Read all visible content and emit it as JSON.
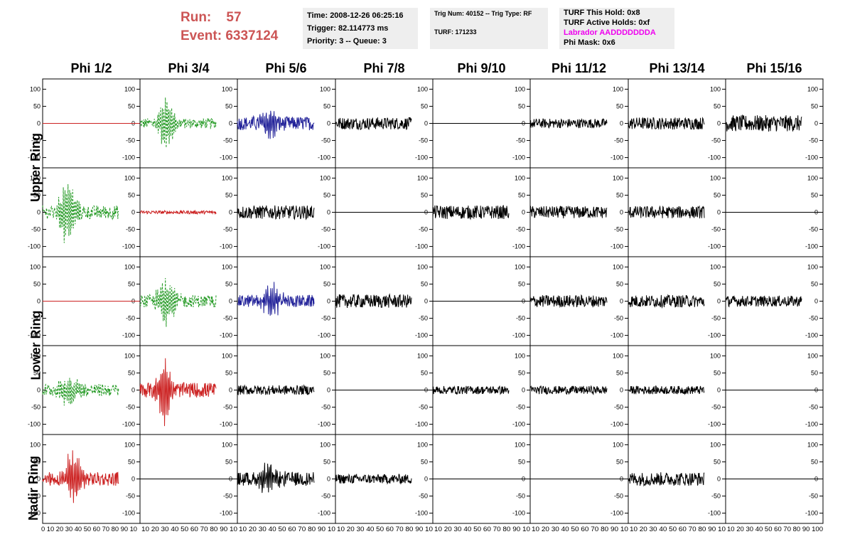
{
  "header": {
    "run_label": "Run:",
    "run_value": "57",
    "event_label": "Event:",
    "event_value": "6337124",
    "time": "Time: 2008-12-26 06:25:16",
    "trigger": "Trigger: 82.114773 ms",
    "priority": "Priority: 3 -- Queue: 3",
    "trig_num": "Trig Num: 40152 -- Trig Type: RF",
    "turf": "TURF: 171233",
    "turf_hold": "TURF This Hold: 0x8",
    "turf_active": "TURF Active Holds: 0xf",
    "labrador": "Labrador AADDDDDDDA",
    "phi_mask": "Phi Mask: 0x6",
    "colors": {
      "run": "#cc5555",
      "labrador": "#ee00ee"
    }
  },
  "columns": [
    "Phi 1/2",
    "Phi 3/4",
    "Phi 5/6",
    "Phi 7/8",
    "Phi 9/10",
    "Phi 11/12",
    "Phi 13/14",
    "Phi 15/16"
  ],
  "rows": [
    "Upper Ring",
    "Upper Ring",
    "Lower Ring",
    "Lower Ring",
    "Nadir Ring"
  ],
  "row_labels": [
    {
      "text": "Upper Ring"
    },
    {
      "text": "Lower Ring"
    },
    {
      "text": "Nadir Ring"
    }
  ],
  "chart_data": {
    "type": "line",
    "xlim": [
      0,
      100
    ],
    "ylim": [
      -130,
      130
    ],
    "y_ticks": [
      -100,
      -50,
      0,
      50,
      100
    ],
    "x_ticks": [
      0,
      10,
      20,
      30,
      40,
      50,
      60,
      70,
      80,
      90,
      100
    ],
    "x_tick_text_first": "0 10 20 30 40 50 60 70 80 90 10",
    "x_tick_text_mid": "10 20 30 40 50 60 70 80 90 10",
    "x_tick_text_last": "10 20 30 40 50 60 70 80 90 100",
    "colors": {
      "black": "#000000",
      "red": "#cc2222",
      "green": "#229922",
      "blue": "#222299"
    },
    "panels": [
      [
        {
          "color": "red",
          "dash": false,
          "amp": 0,
          "burst": null,
          "noise": 0,
          "flat": true
        },
        {
          "color": "green",
          "dash": true,
          "amp": 80,
          "burst": [
            35,
            10
          ],
          "noise": 15,
          "flat": false
        },
        {
          "color": "blue",
          "dash": false,
          "amp": 50,
          "burst": [
            40,
            12
          ],
          "noise": 20,
          "flat": false
        },
        {
          "color": "black",
          "dash": false,
          "amp": 0,
          "burst": null,
          "noise": 18,
          "flat": false
        },
        {
          "color": "black",
          "dash": false,
          "amp": 0,
          "burst": null,
          "noise": 0,
          "flat": true
        },
        {
          "color": "black",
          "dash": false,
          "amp": 0,
          "burst": null,
          "noise": 14,
          "flat": false
        },
        {
          "color": "black",
          "dash": false,
          "amp": 0,
          "burst": null,
          "noise": 18,
          "flat": false
        },
        {
          "color": "black",
          "dash": false,
          "amp": 0,
          "burst": null,
          "noise": 24,
          "flat": false
        }
      ],
      [
        {
          "color": "green",
          "dash": true,
          "amp": 90,
          "burst": [
            32,
            12
          ],
          "noise": 20,
          "flat": false
        },
        {
          "color": "red",
          "dash": false,
          "amp": 0,
          "burst": null,
          "noise": 5,
          "flat": false
        },
        {
          "color": "black",
          "dash": false,
          "amp": 0,
          "burst": null,
          "noise": 20,
          "flat": false
        },
        {
          "color": "black",
          "dash": false,
          "amp": 0,
          "burst": null,
          "noise": 0,
          "flat": true
        },
        {
          "color": "black",
          "dash": false,
          "amp": 0,
          "burst": null,
          "noise": 20,
          "flat": false
        },
        {
          "color": "black",
          "dash": false,
          "amp": 0,
          "burst": null,
          "noise": 18,
          "flat": false
        },
        {
          "color": "black",
          "dash": false,
          "amp": 0,
          "burst": null,
          "noise": 18,
          "flat": false
        },
        {
          "color": "black",
          "dash": false,
          "amp": 0,
          "burst": null,
          "noise": 0,
          "flat": true
        }
      ],
      [
        {
          "color": "red",
          "dash": false,
          "amp": 0,
          "burst": null,
          "noise": 0,
          "flat": true
        },
        {
          "color": "green",
          "dash": true,
          "amp": 75,
          "burst": [
            35,
            12
          ],
          "noise": 18,
          "flat": false
        },
        {
          "color": "blue",
          "dash": false,
          "amp": 45,
          "burst": [
            45,
            12
          ],
          "noise": 18,
          "flat": false
        },
        {
          "color": "black",
          "dash": false,
          "amp": 0,
          "burst": null,
          "noise": 20,
          "flat": false
        },
        {
          "color": "black",
          "dash": false,
          "amp": 0,
          "burst": null,
          "noise": 0,
          "flat": true
        },
        {
          "color": "black",
          "dash": false,
          "amp": 0,
          "burst": null,
          "noise": 18,
          "flat": false
        },
        {
          "color": "black",
          "dash": false,
          "amp": 0,
          "burst": null,
          "noise": 18,
          "flat": false
        },
        {
          "color": "black",
          "dash": false,
          "amp": 0,
          "burst": null,
          "noise": 16,
          "flat": false
        }
      ],
      [
        {
          "color": "green",
          "dash": true,
          "amp": 45,
          "burst": [
            35,
            12
          ],
          "noise": 18,
          "flat": false
        },
        {
          "color": "red",
          "dash": false,
          "amp": 95,
          "burst": [
            32,
            10
          ],
          "noise": 22,
          "flat": false
        },
        {
          "color": "black",
          "dash": false,
          "amp": 0,
          "burst": null,
          "noise": 14,
          "flat": false
        },
        {
          "color": "black",
          "dash": false,
          "amp": 0,
          "burst": null,
          "noise": 0,
          "flat": true
        },
        {
          "color": "black",
          "dash": false,
          "amp": 0,
          "burst": null,
          "noise": 12,
          "flat": false
        },
        {
          "color": "black",
          "dash": false,
          "amp": 0,
          "burst": null,
          "noise": 12,
          "flat": false
        },
        {
          "color": "black",
          "dash": false,
          "amp": 0,
          "burst": null,
          "noise": 12,
          "flat": false
        },
        {
          "color": "black",
          "dash": false,
          "amp": 0,
          "burst": null,
          "noise": 0,
          "flat": true
        }
      ],
      [
        {
          "color": "red",
          "dash": false,
          "amp": 80,
          "burst": [
            40,
            12
          ],
          "noise": 20,
          "flat": false
        },
        {
          "color": "black",
          "dash": false,
          "amp": 0,
          "burst": null,
          "noise": 0,
          "flat": true
        },
        {
          "color": "black",
          "dash": false,
          "amp": 40,
          "burst": [
            40,
            15
          ],
          "noise": 20,
          "flat": false
        },
        {
          "color": "black",
          "dash": false,
          "amp": 0,
          "burst": null,
          "noise": 14,
          "flat": false
        },
        {
          "color": "black",
          "dash": false,
          "amp": 0,
          "burst": null,
          "noise": 0,
          "flat": true
        },
        {
          "color": "black",
          "dash": false,
          "amp": 0,
          "burst": null,
          "noise": 0,
          "flat": true
        },
        {
          "color": "black",
          "dash": false,
          "amp": 0,
          "burst": null,
          "noise": 20,
          "flat": false
        },
        {
          "color": "black",
          "dash": false,
          "amp": 0,
          "burst": null,
          "noise": 0,
          "flat": true
        }
      ]
    ]
  }
}
